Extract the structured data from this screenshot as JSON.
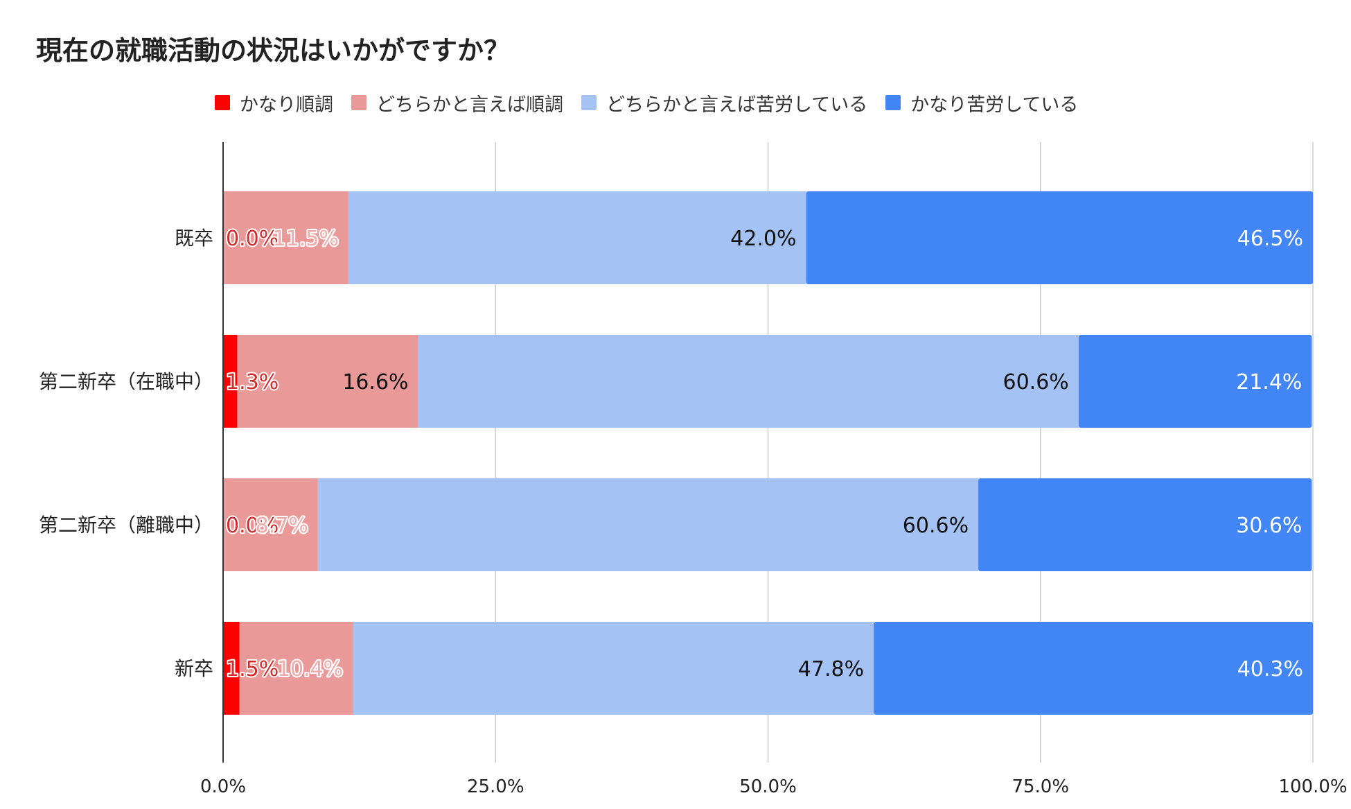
{
  "chart_data": {
    "type": "bar",
    "orientation": "horizontal",
    "stacked": true,
    "title": "現在の就職活動の状況はいかがですか？",
    "categories": [
      "既卒",
      "第二新卒（在職中）",
      "第二新卒（離職中）",
      "新卒"
    ],
    "series": [
      {
        "name": "かなり順調",
        "color": "#ff0000",
        "label_color": "#d32a2a",
        "values": [
          0.0,
          1.3,
          0.0,
          1.5
        ],
        "labels": [
          "0.0%",
          "1.3%",
          "0.0%",
          "1.5%"
        ]
      },
      {
        "name": "どちらかと言えば順調",
        "color": "#ea9999",
        "label_color": "#f2aaaa",
        "values": [
          11.5,
          16.6,
          8.7,
          10.4
        ],
        "labels": [
          "11.5%",
          "16.6%",
          "8.7%",
          "10.4%"
        ]
      },
      {
        "name": "どちらかと言えば苦労している",
        "color": "#a4c2f4",
        "label_color": "#111111",
        "values": [
          42.0,
          60.6,
          60.6,
          47.8
        ],
        "labels": [
          "42.0%",
          "60.6%",
          "60.6%",
          "47.8%"
        ]
      },
      {
        "name": "かなり苦労している",
        "color": "#4285f4",
        "label_color": "#ffffff",
        "values": [
          46.5,
          21.4,
          30.6,
          40.3
        ],
        "labels": [
          "46.5%",
          "21.4%",
          "30.6%",
          "40.3%"
        ]
      }
    ],
    "xlim": [
      0,
      100
    ],
    "x_ticks": [
      "0.0%",
      "25.0%",
      "50.0%",
      "75.0%",
      "100.0%"
    ],
    "grid": true,
    "legend_position": "top"
  }
}
